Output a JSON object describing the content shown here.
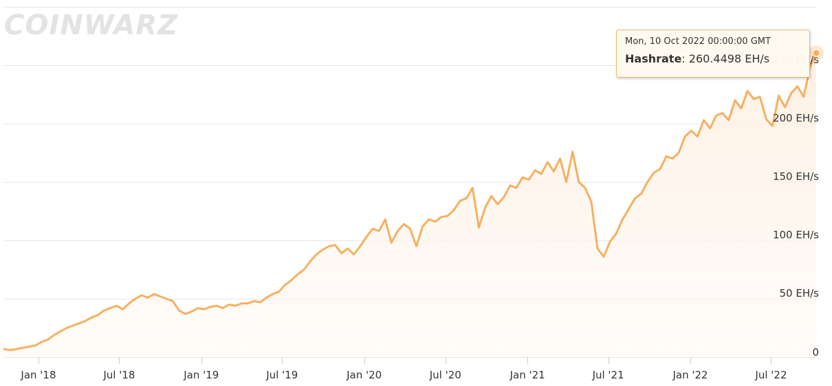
{
  "watermark": "COINWARZ",
  "chart_data": {
    "type": "area",
    "series": [
      {
        "name": "Hashrate",
        "unit": "EH/s",
        "x": [
          "2017-10-16",
          "2017-10-30",
          "2017-11-13",
          "2017-11-27",
          "2017-12-11",
          "2017-12-25",
          "2018-01-08",
          "2018-01-22",
          "2018-02-05",
          "2018-02-19",
          "2018-03-05",
          "2018-03-19",
          "2018-04-02",
          "2018-04-16",
          "2018-04-30",
          "2018-05-14",
          "2018-05-28",
          "2018-06-11",
          "2018-06-25",
          "2018-07-09",
          "2018-07-23",
          "2018-08-06",
          "2018-08-20",
          "2018-09-03",
          "2018-09-17",
          "2018-10-01",
          "2018-10-15",
          "2018-10-29",
          "2018-11-12",
          "2018-11-26",
          "2018-12-10",
          "2018-12-24",
          "2019-01-07",
          "2019-01-21",
          "2019-02-04",
          "2019-02-18",
          "2019-03-04",
          "2019-03-18",
          "2019-04-01",
          "2019-04-15",
          "2019-04-29",
          "2019-05-13",
          "2019-05-27",
          "2019-06-10",
          "2019-06-24",
          "2019-07-08",
          "2019-07-22",
          "2019-08-05",
          "2019-08-19",
          "2019-09-02",
          "2019-09-16",
          "2019-09-30",
          "2019-10-14",
          "2019-10-28",
          "2019-11-11",
          "2019-11-25",
          "2019-12-09",
          "2019-12-23",
          "2020-01-06",
          "2020-01-20",
          "2020-02-03",
          "2020-02-17",
          "2020-03-02",
          "2020-03-16",
          "2020-03-30",
          "2020-04-13",
          "2020-04-27",
          "2020-05-11",
          "2020-05-25",
          "2020-06-08",
          "2020-06-22",
          "2020-07-06",
          "2020-07-20",
          "2020-08-03",
          "2020-08-17",
          "2020-08-31",
          "2020-09-14",
          "2020-09-28",
          "2020-10-12",
          "2020-10-26",
          "2020-11-09",
          "2020-11-23",
          "2020-12-07",
          "2020-12-21",
          "2021-01-04",
          "2021-01-18",
          "2021-02-01",
          "2021-02-15",
          "2021-03-01",
          "2021-03-15",
          "2021-03-29",
          "2021-04-12",
          "2021-04-26",
          "2021-05-10",
          "2021-05-24",
          "2021-06-07",
          "2021-06-21",
          "2021-07-05",
          "2021-07-19",
          "2021-08-02",
          "2021-08-16",
          "2021-08-30",
          "2021-09-13",
          "2021-09-27",
          "2021-10-11",
          "2021-10-25",
          "2021-11-08",
          "2021-11-22",
          "2021-12-06",
          "2021-12-20",
          "2022-01-03",
          "2022-01-17",
          "2022-01-31",
          "2022-02-14",
          "2022-02-28",
          "2022-03-14",
          "2022-03-28",
          "2022-04-11",
          "2022-04-25",
          "2022-05-09",
          "2022-05-23",
          "2022-06-06",
          "2022-06-20",
          "2022-07-04",
          "2022-07-18",
          "2022-08-01",
          "2022-08-15",
          "2022-08-29",
          "2022-09-12",
          "2022-09-26",
          "2022-10-10"
        ],
        "values": [
          7,
          6,
          7,
          8,
          9,
          10,
          13,
          15,
          19,
          22,
          25,
          27,
          29,
          31,
          34,
          36,
          40,
          42,
          44,
          41,
          46,
          50,
          53,
          51,
          54,
          52,
          50,
          48,
          40,
          37,
          39,
          42,
          41,
          43,
          44,
          42,
          45,
          44,
          46,
          46,
          48,
          47,
          51,
          54,
          56,
          62,
          66,
          71,
          75,
          82,
          88,
          92,
          95,
          96,
          89,
          93,
          88,
          95,
          103,
          110,
          108,
          118,
          98,
          108,
          114,
          110,
          95,
          112,
          118,
          116,
          120,
          121,
          126,
          134,
          136,
          145,
          111,
          128,
          138,
          131,
          137,
          147,
          145,
          154,
          152,
          160,
          157,
          167,
          159,
          170,
          150,
          176,
          150,
          145,
          133,
          93,
          86,
          99,
          106,
          118,
          127,
          136,
          140,
          150,
          158,
          161,
          172,
          170,
          175,
          189,
          194,
          189,
          203,
          196,
          207,
          209,
          203,
          220,
          213,
          228,
          221,
          223,
          204,
          198,
          224,
          214,
          226,
          232,
          223,
          248,
          260.4498
        ]
      }
    ],
    "x_ticks": [
      "Jan '18",
      "Jul '18",
      "Jan '19",
      "Jul '19",
      "Jan '20",
      "Jul '20",
      "Jan '21",
      "Jul '21",
      "Jan '22",
      "Jul '22"
    ],
    "x_tick_dates": [
      "2018-01-01",
      "2018-07-01",
      "2019-01-01",
      "2019-07-01",
      "2020-01-01",
      "2020-07-01",
      "2021-01-01",
      "2021-07-01",
      "2022-01-01",
      "2022-07-01"
    ],
    "x_range": [
      "2017-10-16",
      "2022-10-10"
    ],
    "y_ticks": [
      "0",
      "50 EH/s",
      "100 EH/s",
      "150 EH/s",
      "200 EH/s",
      "250 EH/s"
    ],
    "y_tick_values": [
      0,
      50,
      100,
      150,
      200,
      250
    ],
    "ylim": [
      0,
      300
    ],
    "grid": true,
    "colors": {
      "line": "#f5b060",
      "area_top": "#fdefe0",
      "area_bottom": "#fffaf5",
      "grid": "#e6e6e6",
      "tooltip_border": "#f0b46b"
    },
    "tooltip": {
      "date": "Mon, 10 Oct 2022 00:00:00 GMT",
      "label": "Hashrate",
      "value": "260.4498 EH/s"
    }
  }
}
